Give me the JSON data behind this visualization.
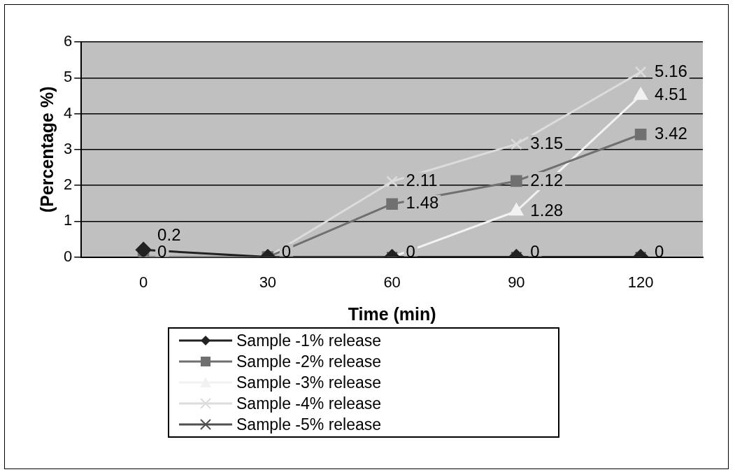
{
  "chart_data": {
    "type": "line",
    "xlabel": "Time (min)",
    "ylabel": "(Percentage %)",
    "categories": [
      "0",
      "30",
      "60",
      "90",
      "120"
    ],
    "ylim": [
      0,
      6
    ],
    "yticks": [
      0,
      1,
      2,
      3,
      4,
      5,
      6
    ],
    "grid": "y",
    "legend": "bottom",
    "line_style": "solid",
    "series": [
      {
        "name": "Sample -1% release",
        "color": "#222222",
        "marker": "diamond",
        "values": [
          0.2,
          0,
          0,
          0,
          0
        ],
        "value_labels": [
          "0.2",
          null,
          null,
          null,
          null
        ]
      },
      {
        "name": "Sample -2% release",
        "color": "#707070",
        "marker": "square",
        "values": [
          0,
          0,
          1.48,
          2.12,
          3.42
        ],
        "value_labels": [
          null,
          null,
          "1.48",
          "2.12",
          "3.42"
        ]
      },
      {
        "name": "Sample -3% release",
        "color": "#f2f2f2",
        "marker": "triangle",
        "values": [
          0,
          0,
          0,
          1.28,
          4.51
        ],
        "value_labels": [
          null,
          null,
          null,
          "1.28",
          "4.51"
        ]
      },
      {
        "name": "Sample -4% release",
        "color": "#dcdcdc",
        "marker": "cross",
        "values": [
          0,
          0,
          2.11,
          3.15,
          5.16
        ],
        "value_labels": [
          null,
          null,
          "2.11",
          "3.15",
          "5.16"
        ]
      },
      {
        "name": "Sample -5% release",
        "color": "#505050",
        "marker": "cross",
        "values": [
          0,
          0,
          0,
          0,
          0
        ],
        "value_labels": [
          "0",
          "0",
          "0",
          "0",
          "0"
        ]
      }
    ]
  }
}
